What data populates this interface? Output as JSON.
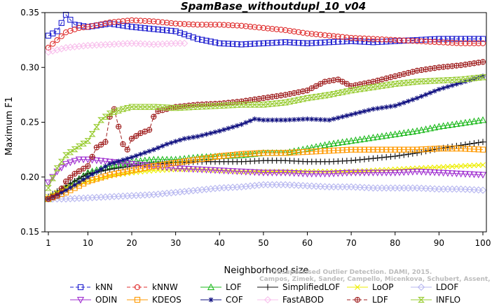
{
  "chart_data": {
    "type": "line",
    "title": "SpamBase_withoutdupl_10_v04",
    "xlabel": "Neighborhood size",
    "ylabel": "Maximum F1",
    "xlim": [
      1,
      100
    ],
    "ylim": [
      0.15,
      0.35
    ],
    "xticks": [
      1,
      10,
      20,
      30,
      40,
      50,
      60,
      70,
      80,
      90,
      100
    ],
    "yticks": [
      0.15,
      0.2,
      0.25,
      0.3,
      0.35
    ],
    "xtick_labels": [
      "1",
      "10",
      "20",
      "30",
      "40",
      "50",
      "60",
      "70",
      "80",
      "90",
      "100"
    ],
    "ytick_labels": [
      "0.15",
      "0.20",
      "0.25",
      "0.30",
      "0.35"
    ],
    "grid": false,
    "legend_position": "bottom",
    "watermark": [
      "Unsupervised Outlier Detection. DAMI, 2015.",
      "Campos, Zimek, Sander, Campello, Micenkova, Schubert, Assent, Houle"
    ],
    "series": [
      {
        "name": "kNN",
        "color": "#2020d0",
        "marker": "square",
        "dash": "5,3",
        "points": [
          [
            1,
            0.329
          ],
          [
            3,
            0.333
          ],
          [
            5,
            0.348
          ],
          [
            7,
            0.339
          ],
          [
            10,
            0.337
          ],
          [
            15,
            0.34
          ],
          [
            20,
            0.337
          ],
          [
            25,
            0.335
          ],
          [
            30,
            0.333
          ],
          [
            35,
            0.326
          ],
          [
            40,
            0.322
          ],
          [
            45,
            0.321
          ],
          [
            50,
            0.322
          ],
          [
            55,
            0.323
          ],
          [
            60,
            0.322
          ],
          [
            65,
            0.323
          ],
          [
            70,
            0.324
          ],
          [
            75,
            0.323
          ],
          [
            80,
            0.324
          ],
          [
            85,
            0.325
          ],
          [
            90,
            0.326
          ],
          [
            95,
            0.326
          ],
          [
            100,
            0.326
          ]
        ]
      },
      {
        "name": "kNNW",
        "color": "#e03030",
        "marker": "circle",
        "dash": "5,3",
        "points": [
          [
            1,
            0.318
          ],
          [
            3,
            0.325
          ],
          [
            5,
            0.332
          ],
          [
            8,
            0.336
          ],
          [
            10,
            0.337
          ],
          [
            15,
            0.341
          ],
          [
            20,
            0.343
          ],
          [
            25,
            0.342
          ],
          [
            30,
            0.34
          ],
          [
            35,
            0.339
          ],
          [
            40,
            0.339
          ],
          [
            45,
            0.338
          ],
          [
            50,
            0.336
          ],
          [
            55,
            0.334
          ],
          [
            60,
            0.331
          ],
          [
            65,
            0.329
          ],
          [
            70,
            0.327
          ],
          [
            75,
            0.326
          ],
          [
            80,
            0.325
          ],
          [
            85,
            0.324
          ],
          [
            90,
            0.323
          ],
          [
            95,
            0.322
          ],
          [
            100,
            0.322
          ]
        ]
      },
      {
        "name": "LOF",
        "color": "#22bb22",
        "marker": "triangle-up",
        "dash": "",
        "points": [
          [
            1,
            0.18
          ],
          [
            5,
            0.19
          ],
          [
            10,
            0.204
          ],
          [
            15,
            0.21
          ],
          [
            20,
            0.214
          ],
          [
            25,
            0.216
          ],
          [
            30,
            0.216
          ],
          [
            35,
            0.218
          ],
          [
            40,
            0.219
          ],
          [
            45,
            0.22
          ],
          [
            50,
            0.222
          ],
          [
            55,
            0.222
          ],
          [
            60,
            0.226
          ],
          [
            65,
            0.23
          ],
          [
            70,
            0.233
          ],
          [
            75,
            0.236
          ],
          [
            80,
            0.239
          ],
          [
            85,
            0.242
          ],
          [
            90,
            0.246
          ],
          [
            95,
            0.249
          ],
          [
            100,
            0.252
          ]
        ]
      },
      {
        "name": "SimplifiedLOF",
        "color": "#111111",
        "marker": "plus",
        "dash": "",
        "points": [
          [
            1,
            0.182
          ],
          [
            5,
            0.192
          ],
          [
            10,
            0.203
          ],
          [
            15,
            0.207
          ],
          [
            20,
            0.21
          ],
          [
            25,
            0.212
          ],
          [
            30,
            0.213
          ],
          [
            35,
            0.214
          ],
          [
            40,
            0.214
          ],
          [
            45,
            0.214
          ],
          [
            50,
            0.215
          ],
          [
            55,
            0.215
          ],
          [
            60,
            0.214
          ],
          [
            65,
            0.214
          ],
          [
            70,
            0.215
          ],
          [
            75,
            0.217
          ],
          [
            80,
            0.219
          ],
          [
            85,
            0.222
          ],
          [
            90,
            0.226
          ],
          [
            95,
            0.229
          ],
          [
            100,
            0.232
          ]
        ]
      },
      {
        "name": "LoOP",
        "color": "#eeee00",
        "marker": "x",
        "dash": "",
        "points": [
          [
            1,
            0.182
          ],
          [
            5,
            0.19
          ],
          [
            10,
            0.196
          ],
          [
            15,
            0.201
          ],
          [
            20,
            0.204
          ],
          [
            25,
            0.206
          ],
          [
            30,
            0.207
          ],
          [
            35,
            0.207
          ],
          [
            40,
            0.206
          ],
          [
            45,
            0.205
          ],
          [
            50,
            0.205
          ],
          [
            55,
            0.205
          ],
          [
            60,
            0.205
          ],
          [
            65,
            0.205
          ],
          [
            70,
            0.205
          ],
          [
            75,
            0.206
          ],
          [
            80,
            0.207
          ],
          [
            85,
            0.208
          ],
          [
            90,
            0.209
          ],
          [
            95,
            0.21
          ],
          [
            100,
            0.211
          ]
        ]
      },
      {
        "name": "LDOF",
        "color": "#b8b8f0",
        "marker": "diamond",
        "dash": "",
        "points": [
          [
            1,
            0.18
          ],
          [
            5,
            0.18
          ],
          [
            10,
            0.181
          ],
          [
            15,
            0.182
          ],
          [
            20,
            0.183
          ],
          [
            25,
            0.184
          ],
          [
            30,
            0.186
          ],
          [
            35,
            0.188
          ],
          [
            40,
            0.19
          ],
          [
            45,
            0.191
          ],
          [
            50,
            0.193
          ],
          [
            55,
            0.193
          ],
          [
            60,
            0.192
          ],
          [
            65,
            0.191
          ],
          [
            70,
            0.191
          ],
          [
            75,
            0.19
          ],
          [
            80,
            0.19
          ],
          [
            85,
            0.19
          ],
          [
            90,
            0.189
          ],
          [
            95,
            0.189
          ],
          [
            100,
            0.188
          ]
        ]
      },
      {
        "name": "ODIN",
        "color": "#a030d0",
        "marker": "triangle-down",
        "dash": "",
        "points": [
          [
            1,
            0.195
          ],
          [
            3,
            0.205
          ],
          [
            5,
            0.212
          ],
          [
            8,
            0.216
          ],
          [
            10,
            0.216
          ],
          [
            15,
            0.214
          ],
          [
            20,
            0.212
          ],
          [
            25,
            0.21
          ],
          [
            30,
            0.208
          ],
          [
            35,
            0.207
          ],
          [
            40,
            0.206
          ],
          [
            45,
            0.205
          ],
          [
            50,
            0.204
          ],
          [
            55,
            0.204
          ],
          [
            60,
            0.203
          ],
          [
            65,
            0.203
          ],
          [
            70,
            0.204
          ],
          [
            75,
            0.204
          ],
          [
            80,
            0.204
          ],
          [
            85,
            0.205
          ],
          [
            90,
            0.204
          ],
          [
            95,
            0.203
          ],
          [
            100,
            0.202
          ]
        ]
      },
      {
        "name": "KDEOS",
        "color": "#ff9900",
        "marker": "square",
        "dash": "",
        "points": [
          [
            1,
            0.18
          ],
          [
            5,
            0.186
          ],
          [
            10,
            0.196
          ],
          [
            15,
            0.202
          ],
          [
            20,
            0.206
          ],
          [
            25,
            0.21
          ],
          [
            30,
            0.213
          ],
          [
            35,
            0.216
          ],
          [
            40,
            0.219
          ],
          [
            45,
            0.221
          ],
          [
            50,
            0.222
          ],
          [
            55,
            0.222
          ],
          [
            60,
            0.223
          ],
          [
            65,
            0.224
          ],
          [
            70,
            0.225
          ],
          [
            75,
            0.225
          ],
          [
            80,
            0.225
          ],
          [
            85,
            0.225
          ],
          [
            90,
            0.226
          ],
          [
            95,
            0.226
          ],
          [
            100,
            0.225
          ]
        ]
      },
      {
        "name": "COF",
        "color": "#101080",
        "marker": "star",
        "dash": "",
        "points": [
          [
            1,
            0.18
          ],
          [
            5,
            0.188
          ],
          [
            10,
            0.2
          ],
          [
            15,
            0.212
          ],
          [
            20,
            0.218
          ],
          [
            25,
            0.225
          ],
          [
            28,
            0.23
          ],
          [
            32,
            0.235
          ],
          [
            35,
            0.237
          ],
          [
            40,
            0.242
          ],
          [
            45,
            0.248
          ],
          [
            48,
            0.253
          ],
          [
            50,
            0.252
          ],
          [
            55,
            0.252
          ],
          [
            60,
            0.253
          ],
          [
            65,
            0.252
          ],
          [
            70,
            0.257
          ],
          [
            75,
            0.262
          ],
          [
            80,
            0.265
          ],
          [
            85,
            0.272
          ],
          [
            90,
            0.28
          ],
          [
            95,
            0.286
          ],
          [
            100,
            0.292
          ]
        ]
      },
      {
        "name": "FastABOD",
        "color": "#f8c0ec",
        "marker": "diamond",
        "dash": "",
        "points": [
          [
            1,
            0.314
          ],
          [
            5,
            0.318
          ],
          [
            10,
            0.32
          ],
          [
            15,
            0.321
          ],
          [
            20,
            0.322
          ],
          [
            25,
            0.321
          ],
          [
            30,
            0.322
          ],
          [
            32,
            0.322
          ]
        ]
      },
      {
        "name": "LDF",
        "color": "#a02020",
        "marker": "circle-plus",
        "dash": "5,3",
        "points": [
          [
            1,
            0.18
          ],
          [
            3,
            0.183
          ],
          [
            5,
            0.196
          ],
          [
            7,
            0.203
          ],
          [
            10,
            0.21
          ],
          [
            12,
            0.227
          ],
          [
            14,
            0.232
          ],
          [
            15,
            0.255
          ],
          [
            16,
            0.262
          ],
          [
            18,
            0.23
          ],
          [
            19,
            0.225
          ],
          [
            20,
            0.235
          ],
          [
            22,
            0.24
          ],
          [
            24,
            0.243
          ],
          [
            25,
            0.255
          ],
          [
            26,
            0.26
          ],
          [
            28,
            0.262
          ],
          [
            30,
            0.264
          ],
          [
            35,
            0.266
          ],
          [
            40,
            0.267
          ],
          [
            45,
            0.269
          ],
          [
            50,
            0.272
          ],
          [
            55,
            0.275
          ],
          [
            60,
            0.279
          ],
          [
            64,
            0.287
          ],
          [
            67,
            0.289
          ],
          [
            70,
            0.283
          ],
          [
            75,
            0.287
          ],
          [
            80,
            0.292
          ],
          [
            85,
            0.297
          ],
          [
            90,
            0.3
          ],
          [
            95,
            0.302
          ],
          [
            100,
            0.305
          ]
        ]
      },
      {
        "name": "INFLO",
        "color": "#99cc33",
        "marker": "hourglass",
        "dash": "",
        "points": [
          [
            1,
            0.19
          ],
          [
            3,
            0.208
          ],
          [
            5,
            0.22
          ],
          [
            8,
            0.228
          ],
          [
            10,
            0.233
          ],
          [
            13,
            0.252
          ],
          [
            15,
            0.258
          ],
          [
            18,
            0.262
          ],
          [
            20,
            0.264
          ],
          [
            25,
            0.264
          ],
          [
            30,
            0.263
          ],
          [
            35,
            0.264
          ],
          [
            40,
            0.265
          ],
          [
            45,
            0.266
          ],
          [
            50,
            0.266
          ],
          [
            55,
            0.268
          ],
          [
            60,
            0.272
          ],
          [
            65,
            0.275
          ],
          [
            70,
            0.279
          ],
          [
            75,
            0.282
          ],
          [
            80,
            0.285
          ],
          [
            85,
            0.287
          ],
          [
            90,
            0.288
          ],
          [
            95,
            0.289
          ],
          [
            100,
            0.291
          ]
        ]
      }
    ]
  }
}
